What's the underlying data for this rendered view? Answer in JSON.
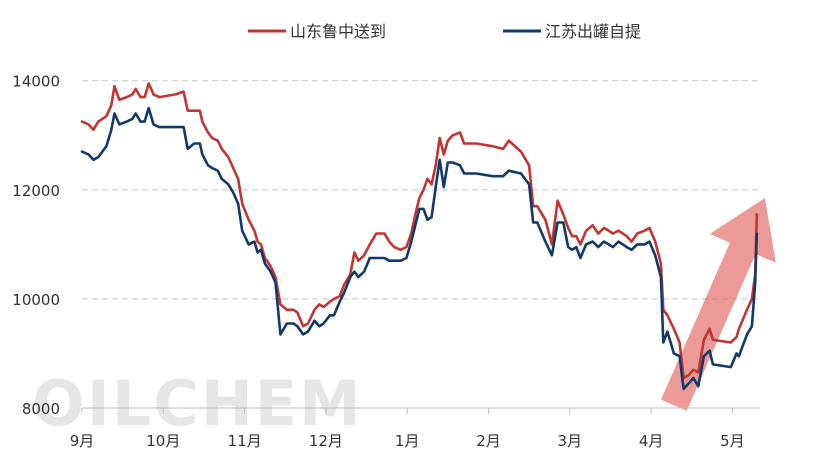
{
  "chart_data": {
    "type": "line",
    "title": "",
    "xlabel": "",
    "ylabel": "",
    "ylim": [
      8000,
      14600
    ],
    "yticks": [
      8000,
      10000,
      12000,
      14000
    ],
    "grid": {
      "horizontal": true,
      "style": "dashed"
    },
    "legend_position": "top",
    "watermark": "OILCHEM",
    "months": [
      "9月",
      "10月",
      "11月",
      "12月",
      "1月",
      "2月",
      "3月",
      "4月",
      "5月"
    ],
    "x_range": [
      0,
      8.4
    ],
    "series": [
      {
        "name": "山东鲁中送到",
        "color": "#c23531",
        "points": [
          [
            0.0,
            13250
          ],
          [
            0.08,
            13200
          ],
          [
            0.14,
            13100
          ],
          [
            0.2,
            13250
          ],
          [
            0.3,
            13350
          ],
          [
            0.36,
            13550
          ],
          [
            0.4,
            13900
          ],
          [
            0.46,
            13650
          ],
          [
            0.55,
            13700
          ],
          [
            0.62,
            13750
          ],
          [
            0.66,
            13850
          ],
          [
            0.72,
            13700
          ],
          [
            0.77,
            13700
          ],
          [
            0.82,
            13950
          ],
          [
            0.88,
            13750
          ],
          [
            0.95,
            13700
          ],
          [
            1.15,
            13750
          ],
          [
            1.25,
            13800
          ],
          [
            1.3,
            13450
          ],
          [
            1.38,
            13450
          ],
          [
            1.45,
            13450
          ],
          [
            1.48,
            13250
          ],
          [
            1.55,
            13050
          ],
          [
            1.6,
            12950
          ],
          [
            1.67,
            12900
          ],
          [
            1.72,
            12750
          ],
          [
            1.8,
            12600
          ],
          [
            1.86,
            12400
          ],
          [
            1.92,
            12200
          ],
          [
            1.97,
            11750
          ],
          [
            2.05,
            11450
          ],
          [
            2.12,
            11250
          ],
          [
            2.16,
            11050
          ],
          [
            2.2,
            11000
          ],
          [
            2.25,
            10750
          ],
          [
            2.32,
            10600
          ],
          [
            2.38,
            10400
          ],
          [
            2.44,
            9900
          ],
          [
            2.52,
            9800
          ],
          [
            2.6,
            9800
          ],
          [
            2.65,
            9750
          ],
          [
            2.72,
            9500
          ],
          [
            2.78,
            9550
          ],
          [
            2.86,
            9800
          ],
          [
            2.92,
            9900
          ],
          [
            2.97,
            9850
          ],
          [
            3.05,
            9950
          ],
          [
            3.1,
            10000
          ],
          [
            3.17,
            10050
          ],
          [
            3.22,
            10250
          ],
          [
            3.3,
            10450
          ],
          [
            3.35,
            10850
          ],
          [
            3.4,
            10700
          ],
          [
            3.47,
            10800
          ],
          [
            3.54,
            11000
          ],
          [
            3.62,
            11200
          ],
          [
            3.72,
            11200
          ],
          [
            3.78,
            11050
          ],
          [
            3.84,
            10950
          ],
          [
            3.92,
            10900
          ],
          [
            3.99,
            10950
          ],
          [
            4.05,
            11200
          ],
          [
            4.1,
            11550
          ],
          [
            4.15,
            11850
          ],
          [
            4.2,
            12000
          ],
          [
            4.25,
            12200
          ],
          [
            4.3,
            12100
          ],
          [
            4.35,
            12450
          ],
          [
            4.4,
            12950
          ],
          [
            4.45,
            12650
          ],
          [
            4.5,
            12900
          ],
          [
            4.56,
            13000
          ],
          [
            4.65,
            13050
          ],
          [
            4.7,
            12850
          ],
          [
            4.85,
            12850
          ],
          [
            5.05,
            12800
          ],
          [
            5.18,
            12750
          ],
          [
            5.25,
            12900
          ],
          [
            5.4,
            12700
          ],
          [
            5.5,
            12450
          ],
          [
            5.55,
            11700
          ],
          [
            5.6,
            11700
          ],
          [
            5.7,
            11450
          ],
          [
            5.78,
            11000
          ],
          [
            5.85,
            11800
          ],
          [
            5.92,
            11550
          ],
          [
            5.98,
            11300
          ],
          [
            6.03,
            11150
          ],
          [
            6.08,
            11150
          ],
          [
            6.13,
            11000
          ],
          [
            6.2,
            11250
          ],
          [
            6.28,
            11350
          ],
          [
            6.35,
            11200
          ],
          [
            6.42,
            11300
          ],
          [
            6.48,
            11250
          ],
          [
            6.53,
            11200
          ],
          [
            6.6,
            11250
          ],
          [
            6.7,
            11150
          ],
          [
            6.76,
            11050
          ],
          [
            6.83,
            11200
          ],
          [
            6.92,
            11250
          ],
          [
            6.98,
            11300
          ],
          [
            7.05,
            11050
          ],
          [
            7.12,
            10650
          ],
          [
            7.15,
            9800
          ],
          [
            7.2,
            9700
          ],
          [
            7.28,
            9450
          ],
          [
            7.35,
            9200
          ],
          [
            7.4,
            8550
          ],
          [
            7.46,
            8600
          ],
          [
            7.52,
            8700
          ],
          [
            7.58,
            8650
          ],
          [
            7.65,
            9250
          ],
          [
            7.72,
            9450
          ],
          [
            7.76,
            9250
          ],
          [
            7.98,
            9200
          ],
          [
            8.05,
            9300
          ],
          [
            8.08,
            9450
          ],
          [
            8.18,
            9800
          ],
          [
            8.24,
            10000
          ],
          [
            8.28,
            10450
          ],
          [
            8.3,
            11550
          ]
        ]
      },
      {
        "name": "江苏出罐自提",
        "color": "#12396b",
        "points": [
          [
            0.0,
            12700
          ],
          [
            0.08,
            12650
          ],
          [
            0.14,
            12550
          ],
          [
            0.2,
            12600
          ],
          [
            0.3,
            12800
          ],
          [
            0.36,
            13100
          ],
          [
            0.4,
            13400
          ],
          [
            0.46,
            13200
          ],
          [
            0.55,
            13250
          ],
          [
            0.62,
            13300
          ],
          [
            0.66,
            13400
          ],
          [
            0.72,
            13250
          ],
          [
            0.77,
            13250
          ],
          [
            0.82,
            13500
          ],
          [
            0.88,
            13200
          ],
          [
            0.95,
            13150
          ],
          [
            1.15,
            13150
          ],
          [
            1.25,
            13150
          ],
          [
            1.3,
            12750
          ],
          [
            1.38,
            12850
          ],
          [
            1.45,
            12850
          ],
          [
            1.48,
            12650
          ],
          [
            1.55,
            12450
          ],
          [
            1.6,
            12400
          ],
          [
            1.67,
            12350
          ],
          [
            1.72,
            12200
          ],
          [
            1.8,
            12100
          ],
          [
            1.86,
            11950
          ],
          [
            1.92,
            11750
          ],
          [
            1.97,
            11250
          ],
          [
            2.05,
            11000
          ],
          [
            2.12,
            11050
          ],
          [
            2.16,
            10850
          ],
          [
            2.2,
            10900
          ],
          [
            2.25,
            10650
          ],
          [
            2.32,
            10500
          ],
          [
            2.38,
            10300
          ],
          [
            2.44,
            9350
          ],
          [
            2.52,
            9550
          ],
          [
            2.6,
            9550
          ],
          [
            2.65,
            9500
          ],
          [
            2.72,
            9350
          ],
          [
            2.78,
            9400
          ],
          [
            2.86,
            9600
          ],
          [
            2.92,
            9500
          ],
          [
            2.97,
            9550
          ],
          [
            3.05,
            9700
          ],
          [
            3.1,
            9700
          ],
          [
            3.17,
            9950
          ],
          [
            3.22,
            10100
          ],
          [
            3.3,
            10400
          ],
          [
            3.35,
            10500
          ],
          [
            3.4,
            10400
          ],
          [
            3.47,
            10500
          ],
          [
            3.54,
            10750
          ],
          [
            3.62,
            10750
          ],
          [
            3.72,
            10750
          ],
          [
            3.78,
            10700
          ],
          [
            3.84,
            10700
          ],
          [
            3.92,
            10700
          ],
          [
            3.99,
            10750
          ],
          [
            4.05,
            11050
          ],
          [
            4.1,
            11350
          ],
          [
            4.15,
            11650
          ],
          [
            4.2,
            11650
          ],
          [
            4.25,
            11450
          ],
          [
            4.3,
            11500
          ],
          [
            4.35,
            12050
          ],
          [
            4.4,
            12550
          ],
          [
            4.45,
            12050
          ],
          [
            4.5,
            12500
          ],
          [
            4.56,
            12500
          ],
          [
            4.65,
            12450
          ],
          [
            4.7,
            12300
          ],
          [
            4.85,
            12300
          ],
          [
            5.05,
            12250
          ],
          [
            5.18,
            12250
          ],
          [
            5.25,
            12350
          ],
          [
            5.4,
            12300
          ],
          [
            5.5,
            12100
          ],
          [
            5.55,
            11400
          ],
          [
            5.6,
            11400
          ],
          [
            5.7,
            11050
          ],
          [
            5.78,
            10800
          ],
          [
            5.85,
            11400
          ],
          [
            5.92,
            11400
          ],
          [
            5.98,
            10950
          ],
          [
            6.03,
            10900
          ],
          [
            6.08,
            10950
          ],
          [
            6.13,
            10750
          ],
          [
            6.2,
            11000
          ],
          [
            6.28,
            11050
          ],
          [
            6.35,
            10950
          ],
          [
            6.42,
            11050
          ],
          [
            6.48,
            11000
          ],
          [
            6.53,
            10950
          ],
          [
            6.6,
            11050
          ],
          [
            6.7,
            10950
          ],
          [
            6.76,
            10900
          ],
          [
            6.83,
            11000
          ],
          [
            6.92,
            11000
          ],
          [
            6.98,
            11050
          ],
          [
            7.05,
            10800
          ],
          [
            7.12,
            10400
          ],
          [
            7.15,
            9200
          ],
          [
            7.2,
            9400
          ],
          [
            7.28,
            9000
          ],
          [
            7.35,
            8950
          ],
          [
            7.4,
            8350
          ],
          [
            7.46,
            8450
          ],
          [
            7.52,
            8550
          ],
          [
            7.58,
            8400
          ],
          [
            7.65,
            8950
          ],
          [
            7.72,
            9050
          ],
          [
            7.76,
            8800
          ],
          [
            7.98,
            8750
          ],
          [
            8.05,
            9000
          ],
          [
            8.08,
            8950
          ],
          [
            8.18,
            9350
          ],
          [
            8.24,
            9500
          ],
          [
            8.28,
            10300
          ],
          [
            8.3,
            11200
          ]
        ]
      }
    ],
    "annotation": {
      "type": "arrow",
      "color": "#e06460",
      "direction": "up-right"
    }
  }
}
